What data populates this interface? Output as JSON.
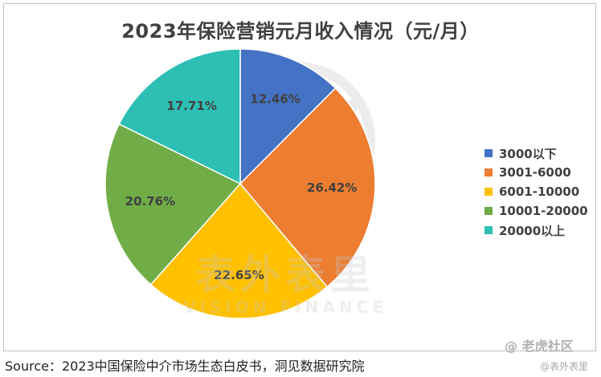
{
  "chart_data": {
    "type": "pie",
    "title": "2023年保险营销元月收入情况（元/月）",
    "categories": [
      "3000以下",
      "3001-6000",
      "6001-10000",
      "10001-20000",
      "20000以上"
    ],
    "values": [
      12.46,
      26.42,
      22.65,
      20.76,
      17.71
    ],
    "labels": [
      "12.46%",
      "26.42%",
      "22.65%",
      "20.76%",
      "17.71%"
    ],
    "colors": [
      "#4472c4",
      "#ed7d31",
      "#ffc000",
      "#70ad47",
      "#2dbfb4"
    ],
    "legend_position": "right",
    "start_angle_deg": 0,
    "direction": "clockwise"
  },
  "source": "Source：2023中国保险中介市场生态白皮书，洞见数据研究院",
  "watermarks": {
    "corner": "@ 老虎社区",
    "corner_sub": "@表外表里",
    "big_cn": "表外表里",
    "big_en": "VISION FINANCE"
  }
}
